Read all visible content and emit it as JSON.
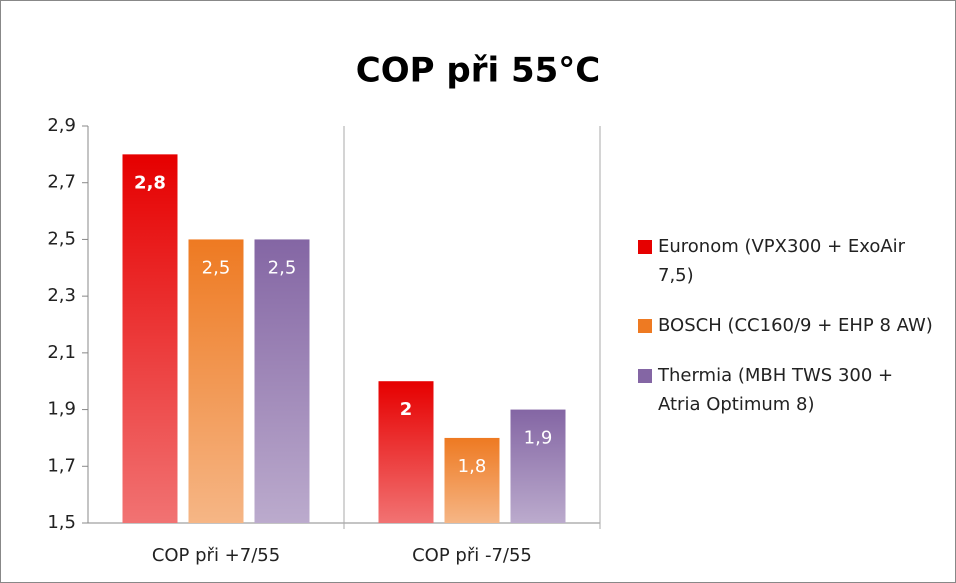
{
  "chart_data": {
    "type": "bar",
    "title": "COP při 55°C",
    "categories": [
      "COP při +7/55",
      "COP při -7/55"
    ],
    "series": [
      {
        "name": "Euronom (VPX300 + ExoAir 7,5)",
        "color": "#e60000",
        "values": [
          2.8,
          2
        ],
        "value_labels": [
          "2,8",
          "2"
        ]
      },
      {
        "name": "BOSCH (CC160/9 + EHP 8 AW)",
        "color": "#ee7a22",
        "values": [
          2.5,
          1.8
        ],
        "value_labels": [
          "2,5",
          "1,8"
        ]
      },
      {
        "name": "Thermia (MBH TWS 300  + Atria Optimum 8)",
        "color": "#8466a4",
        "values": [
          2.5,
          1.9
        ],
        "value_labels": [
          "2,5",
          "1,9"
        ]
      }
    ],
    "ylim": [
      1.5,
      2.9
    ],
    "yticks": [
      {
        "value": 1.5,
        "label": "1,5"
      },
      {
        "value": 1.7,
        "label": "1,7"
      },
      {
        "value": 1.9,
        "label": "1,9"
      },
      {
        "value": 2.1,
        "label": "2,1"
      },
      {
        "value": 2.3,
        "label": "2,3"
      },
      {
        "value": 2.5,
        "label": "2,5"
      },
      {
        "value": 2.7,
        "label": "2,7"
      },
      {
        "value": 2.9,
        "label": "2,9"
      }
    ],
    "legend": "right"
  }
}
